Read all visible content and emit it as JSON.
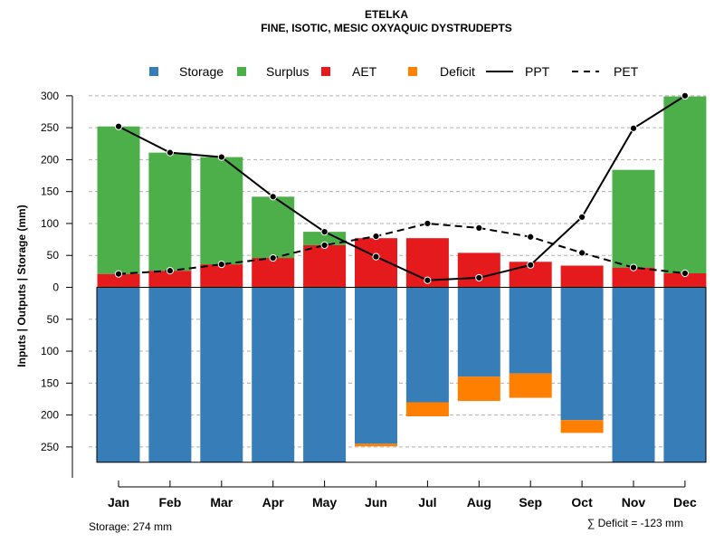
{
  "chart_data": {
    "type": "bar",
    "title": "ETELKA",
    "subtitle": "FINE, ISOTIC, MESIC OXYAQUIC DYSTRUDEPTS",
    "ylabel": "Inputs | Outputs | Storage    (mm)",
    "ylim": [
      -280,
      305
    ],
    "yticks_positive": [
      0,
      50,
      100,
      150,
      200,
      250,
      300
    ],
    "yticks_negative": [
      50,
      100,
      150,
      200,
      250
    ],
    "categories": [
      "Jan",
      "Feb",
      "Mar",
      "Apr",
      "May",
      "Jun",
      "Jul",
      "Aug",
      "Sep",
      "Oct",
      "Nov",
      "Dec"
    ],
    "legend": [
      {
        "label": "Storage",
        "kind": "box",
        "color": "#377EB8"
      },
      {
        "label": "Surplus",
        "kind": "box",
        "color": "#4DAF4A"
      },
      {
        "label": "AET",
        "kind": "box",
        "color": "#E41A1C"
      },
      {
        "label": "Deficit",
        "kind": "box",
        "color": "#FF7F00"
      },
      {
        "label": "PPT",
        "kind": "solid",
        "color": "#000000"
      },
      {
        "label": "PET",
        "kind": "dashed",
        "color": "#000000"
      }
    ],
    "series": [
      {
        "name": "Storage",
        "color": "#377EB8",
        "values": [
          274,
          274,
          274,
          274,
          274,
          245,
          180,
          140,
          135,
          208,
          274,
          274
        ]
      },
      {
        "name": "Deficit",
        "color": "#FF7F00",
        "values": [
          0,
          0,
          0,
          0,
          0,
          4,
          22,
          38,
          38,
          20,
          0,
          0
        ]
      },
      {
        "name": "AET",
        "color": "#E41A1C",
        "values": [
          21,
          26,
          36,
          46,
          66,
          77,
          77,
          54,
          40,
          34,
          31,
          22
        ]
      },
      {
        "name": "Surplus",
        "color": "#4DAF4A",
        "values": [
          231,
          185,
          168,
          96,
          21,
          0,
          0,
          0,
          0,
          0,
          153,
          277
        ]
      },
      {
        "name": "PPT",
        "color": "#000000",
        "values": [
          252,
          211,
          204,
          142,
          87,
          48,
          11,
          15,
          35,
          110,
          249,
          300
        ]
      },
      {
        "name": "PET",
        "color": "#000000",
        "values": [
          21,
          26,
          36,
          46,
          66,
          80,
          100,
          93,
          79,
          54,
          31,
          22
        ]
      }
    ],
    "footer_left": "Storage: 274 mm",
    "footer_right": "∑ Deficit = -123 mm"
  }
}
